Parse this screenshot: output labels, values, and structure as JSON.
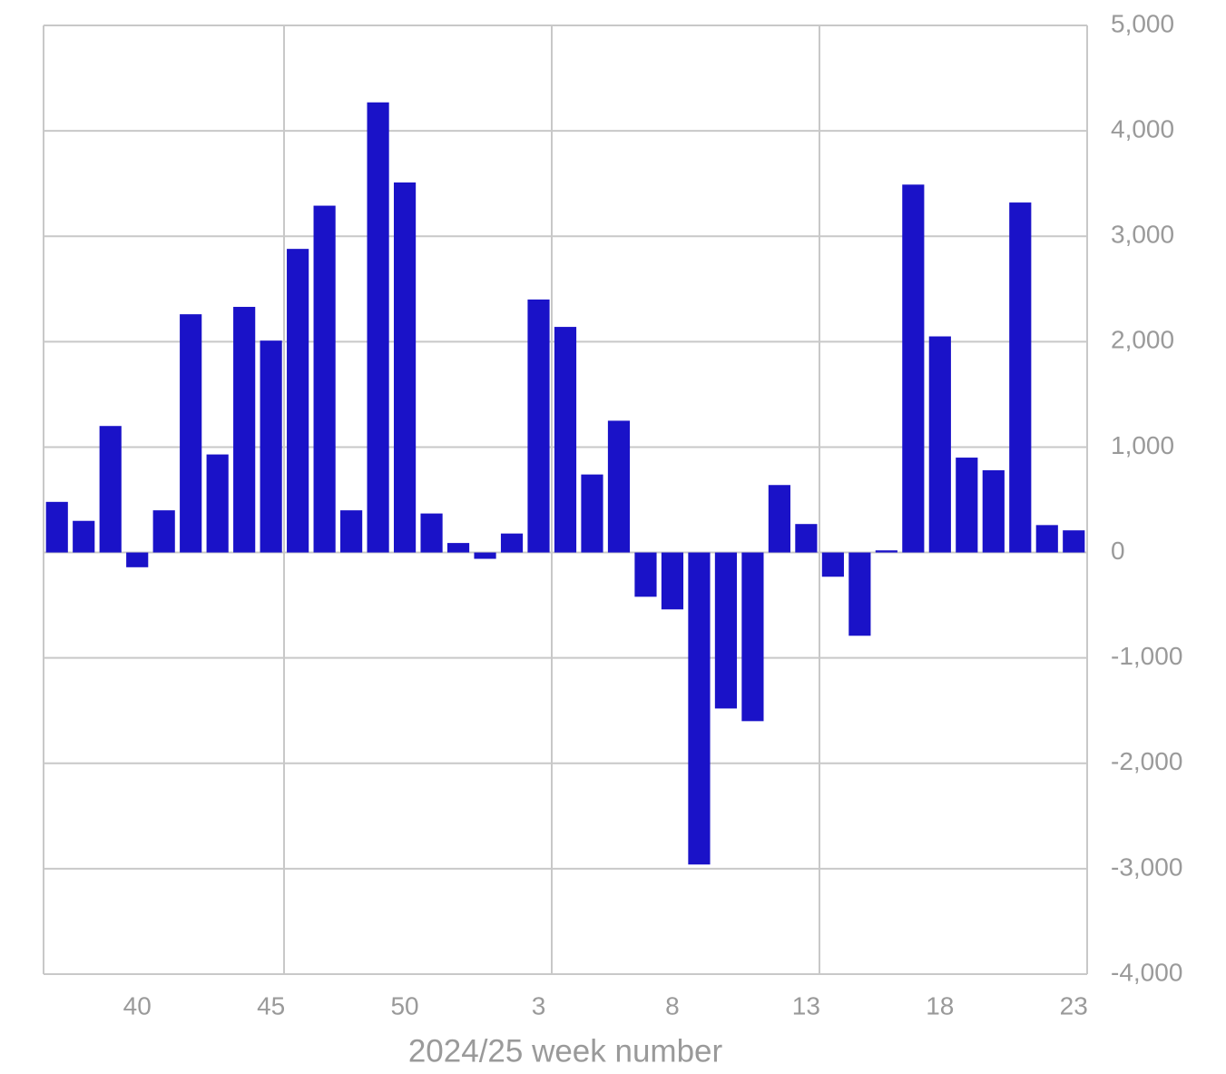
{
  "chart_data": {
    "type": "bar",
    "x_label": "2024/25 week number",
    "categories": [
      null,
      null,
      null,
      "40",
      null,
      null,
      null,
      null,
      "45",
      null,
      null,
      null,
      null,
      "50",
      null,
      null,
      null,
      null,
      "3",
      null,
      null,
      null,
      null,
      "8",
      null,
      null,
      null,
      null,
      "13",
      null,
      null,
      null,
      null,
      "18",
      null,
      null,
      null,
      null,
      "23"
    ],
    "values": [
      480,
      300,
      1200,
      -140,
      400,
      2260,
      930,
      2330,
      2010,
      2880,
      3290,
      400,
      4270,
      3510,
      370,
      90,
      -60,
      180,
      2400,
      2140,
      740,
      1250,
      -420,
      -540,
      -2960,
      -1480,
      -1600,
      640,
      270,
      -230,
      -790,
      20,
      3490,
      2050,
      900,
      780,
      3320,
      260,
      210
    ],
    "color": "#1a12c8",
    "ylim": [
      -4000,
      5000
    ],
    "yticks": [
      {
        "value": -4000,
        "label": "-4,000"
      },
      {
        "value": -3000,
        "label": "-3,000"
      },
      {
        "value": -2000,
        "label": "-2,000"
      },
      {
        "value": -1000,
        "label": "-1,000"
      },
      0,
      {
        "value": 1000,
        "label": "1,000"
      },
      {
        "value": 2000,
        "label": "2,000"
      },
      {
        "value": 3000,
        "label": "3,000"
      },
      {
        "value": 4000,
        "label": "4,000"
      },
      {
        "value": 5000,
        "label": "5,000"
      }
    ],
    "grid": true
  }
}
